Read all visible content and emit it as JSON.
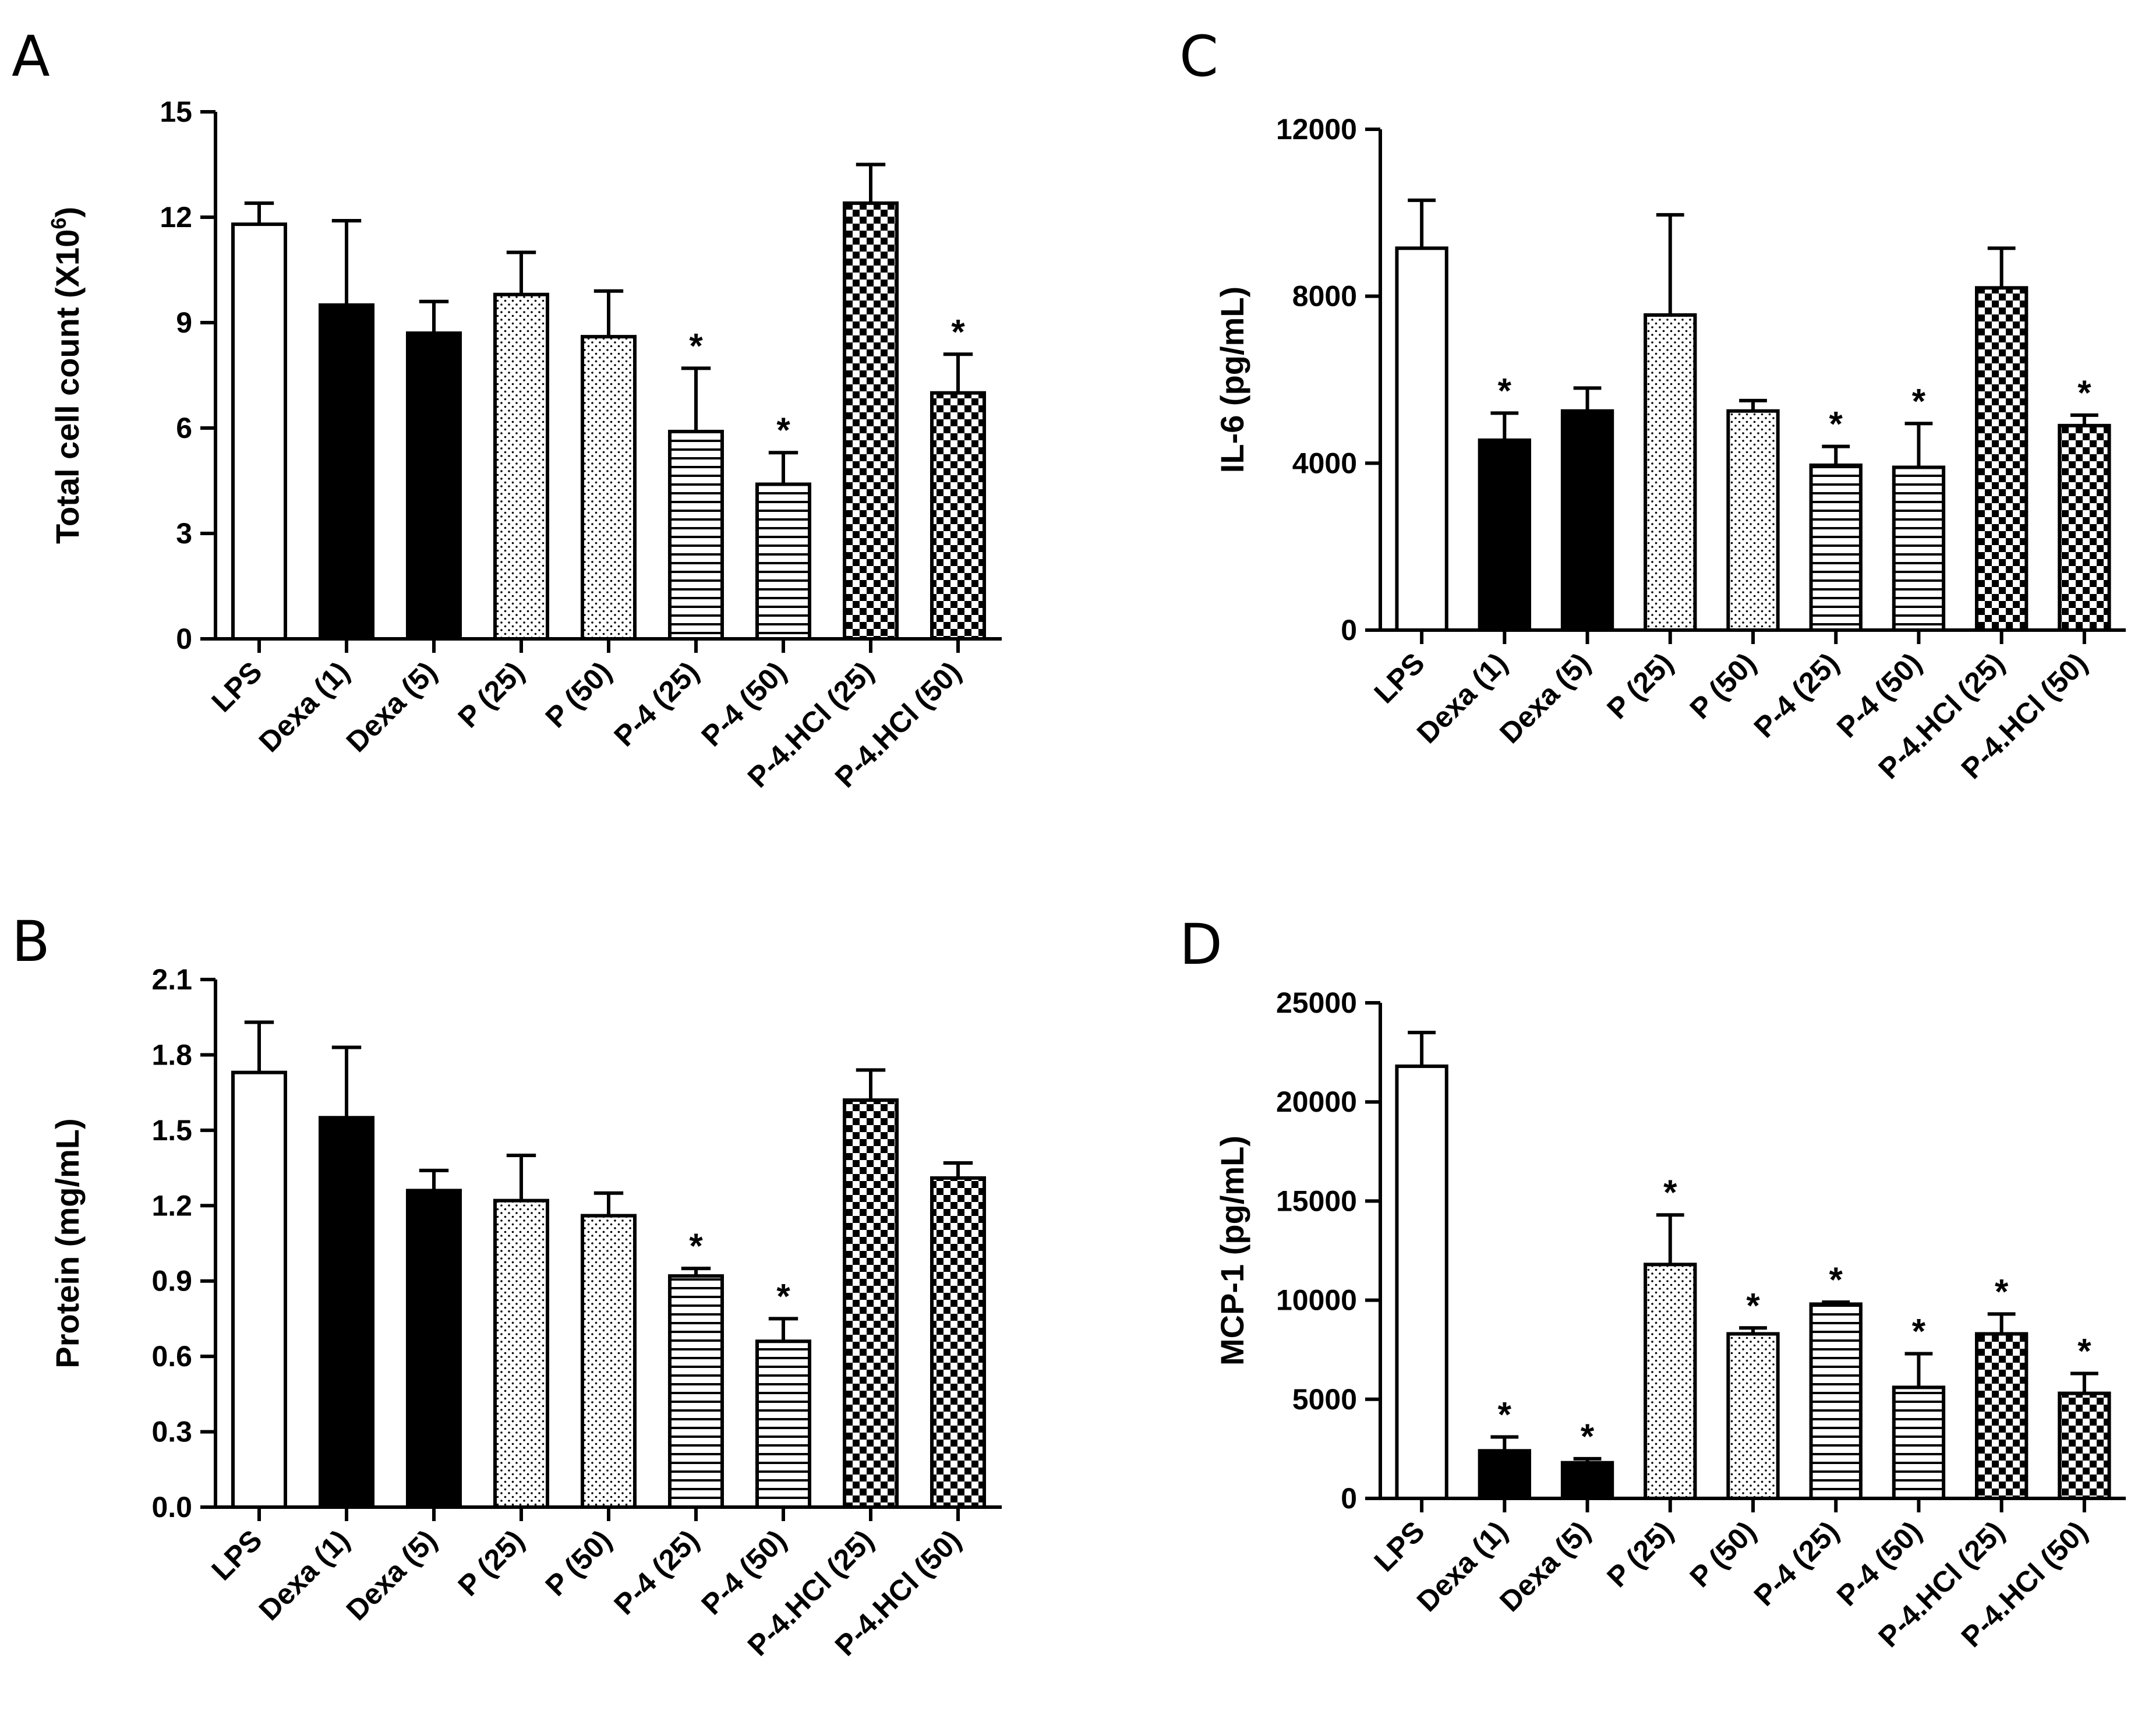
{
  "figure": {
    "panels_order": [
      "A",
      "C",
      "B",
      "D"
    ]
  },
  "patterns": {
    "LPS": "white",
    "Dexa (1)": "black",
    "Dexa (5)": "black",
    "P (25)": "dots",
    "P (50)": "dots",
    "P-4 (25)": "hlines",
    "P-4 (50)": "hlines",
    "P-4.HCl (25)": "checker",
    "P-4.HCl (50)": "checker"
  },
  "colors": {
    "ink": "#000000",
    "background": "#ffffff"
  },
  "chart_data": [
    {
      "id": "A",
      "panel_label": "A",
      "type": "bar",
      "ylabel": "Total cell count (X10",
      "ylabel_sup": "6",
      "ylabel_tail": ")",
      "ylim": [
        0,
        15
      ],
      "yticks": [
        0,
        3,
        6,
        9,
        12,
        15
      ],
      "categories": [
        "LPS",
        "Dexa (1)",
        "Dexa (5)",
        "P (25)",
        "P (50)",
        "P-4 (25)",
        "P-4 (50)",
        "P-4.HCl (25)",
        "P-4.HCl (50)"
      ],
      "values": [
        11.8,
        9.5,
        8.7,
        9.8,
        8.6,
        5.9,
        4.4,
        12.4,
        7.0
      ],
      "errors": [
        0.6,
        2.4,
        0.9,
        1.2,
        1.3,
        1.8,
        0.9,
        1.1,
        1.1
      ],
      "significant": [
        false,
        false,
        false,
        false,
        false,
        true,
        true,
        false,
        true
      ],
      "marker": "*"
    },
    {
      "id": "C",
      "panel_label": "C",
      "type": "bar",
      "ylabel": "IL-6 (pg/mL)",
      "ylim": [
        0,
        12000
      ],
      "yticks": [
        0,
        4000,
        8000,
        12000
      ],
      "categories": [
        "LPS",
        "Dexa (1)",
        "Dexa (5)",
        "P (25)",
        "P (50)",
        "P-4 (25)",
        "P-4 (50)",
        "P-4.HCl (25)",
        "P-4.HCl (50)"
      ],
      "values": [
        9150,
        4550,
        5250,
        7550,
        5250,
        3950,
        3900,
        8200,
        4900
      ],
      "errors": [
        1150,
        650,
        550,
        2400,
        250,
        450,
        1050,
        950,
        250
      ],
      "significant": [
        false,
        true,
        false,
        false,
        false,
        true,
        true,
        false,
        true
      ],
      "marker": "*"
    },
    {
      "id": "B",
      "panel_label": "B",
      "type": "bar",
      "ylabel": "Protein (mg/mL)",
      "ylim": [
        0,
        2.1
      ],
      "yticks": [
        "0.0",
        "0.3",
        "0.6",
        "0.9",
        "1.2",
        "1.5",
        "1.8",
        "2.1"
      ],
      "categories": [
        "LPS",
        "Dexa (1)",
        "Dexa (5)",
        "P (25)",
        "P (50)",
        "P-4 (25)",
        "P-4 (50)",
        "P-4.HCl (25)",
        "P-4.HCl (50)"
      ],
      "values": [
        1.73,
        1.55,
        1.26,
        1.22,
        1.16,
        0.92,
        0.66,
        1.62,
        1.31
      ],
      "errors": [
        0.2,
        0.28,
        0.08,
        0.18,
        0.09,
        0.03,
        0.09,
        0.12,
        0.06
      ],
      "significant": [
        false,
        false,
        false,
        false,
        false,
        true,
        true,
        false,
        false
      ],
      "marker": "*"
    },
    {
      "id": "D",
      "panel_label": "D",
      "type": "bar",
      "ylabel": "MCP-1 (pg/mL)",
      "ylim": [
        0,
        25000
      ],
      "yticks": [
        0,
        5000,
        10000,
        15000,
        20000,
        25000
      ],
      "categories": [
        "LPS",
        "Dexa (1)",
        "Dexa (5)",
        "P (25)",
        "P (50)",
        "P-4 (25)",
        "P-4 (50)",
        "P-4.HCl (25)",
        "P-4.HCl (50)"
      ],
      "values": [
        21800,
        2400,
        1800,
        11800,
        8300,
        9800,
        5600,
        8300,
        5300
      ],
      "errors": [
        1700,
        700,
        200,
        2500,
        300,
        100,
        1700,
        1000,
        1000
      ],
      "significant": [
        false,
        true,
        true,
        true,
        true,
        true,
        true,
        true,
        true
      ],
      "marker": "*"
    }
  ]
}
